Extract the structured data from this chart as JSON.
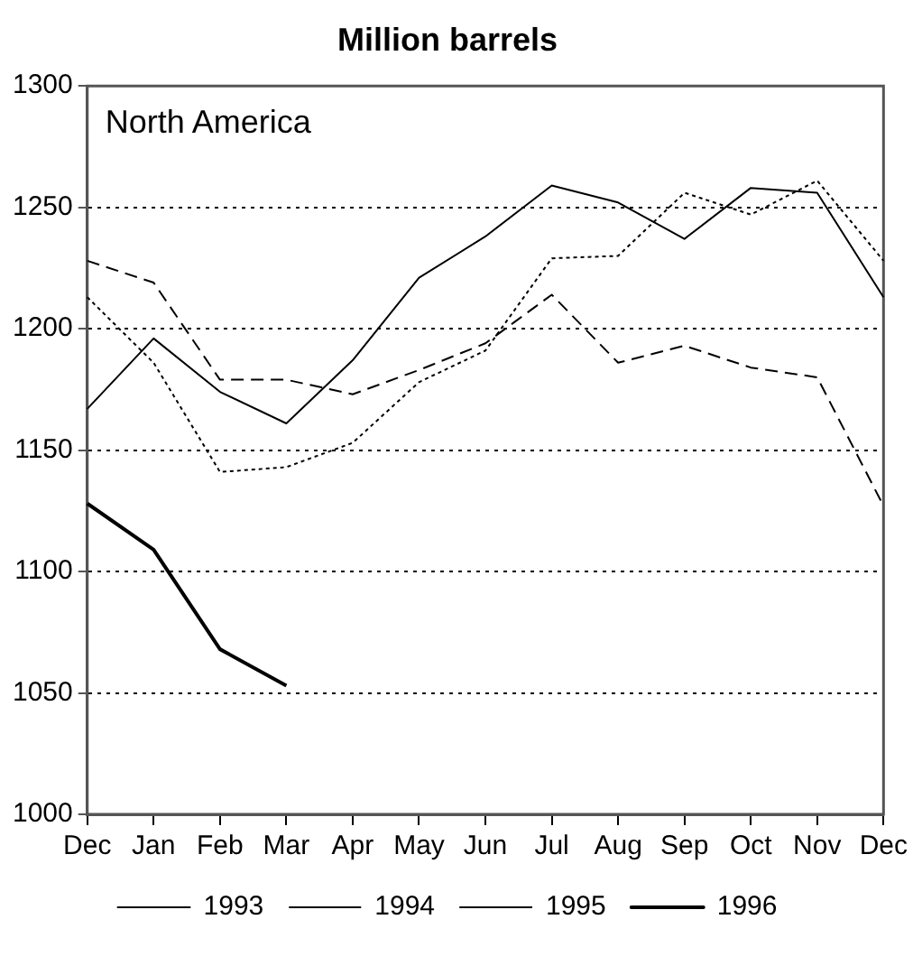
{
  "chart_data": {
    "type": "line",
    "title": "Million barrels",
    "annotations": [
      "North America"
    ],
    "categories": [
      "Dec",
      "Jan",
      "Feb",
      "Mar",
      "Apr",
      "May",
      "Jun",
      "Jul",
      "Aug",
      "Sep",
      "Oct",
      "Nov",
      "Dec"
    ],
    "series": [
      {
        "name": "1993",
        "color": "#000000",
        "line_style": "solid",
        "values": [
          1167,
          1196,
          1174,
          1161,
          1187,
          1221,
          1238,
          1259,
          1252,
          1237,
          1258,
          1256,
          1213
        ]
      },
      {
        "name": "1994",
        "color": "#000000",
        "line_style": "dotted",
        "values": [
          1213,
          1186,
          1141,
          1143,
          1153,
          1178,
          1191,
          1229,
          1230,
          1256,
          1247,
          1261,
          1228
        ]
      },
      {
        "name": "1995",
        "color": "#000000",
        "line_style": "dashed",
        "values": [
          1228,
          1219,
          1179,
          1179,
          1173,
          1183,
          1194,
          1214,
          1186,
          1193,
          1184,
          1180,
          1127
        ]
      },
      {
        "name": "1996",
        "color": "#000000",
        "line_style": "solid",
        "values": [
          1128,
          1109,
          1068,
          1053,
          null,
          null,
          null,
          null,
          null,
          null,
          null,
          null,
          null
        ]
      }
    ],
    "ylim": [
      1000,
      1300
    ],
    "yticks": [
      1000,
      1050,
      1100,
      1150,
      1200,
      1250,
      1300
    ],
    "grid": "y",
    "legend": "bottom",
    "marker": "none"
  }
}
